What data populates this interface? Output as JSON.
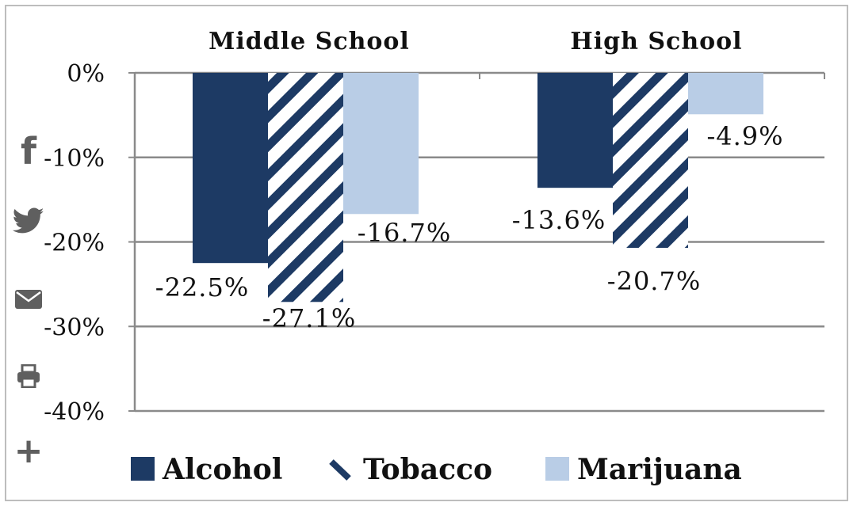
{
  "colors": {
    "alcohol": "#1d3a64",
    "tobacco_stripe": "#1d3a64",
    "marijuana": "#b9cde6",
    "grid": "#8a8a8a",
    "axis": "#8a8a8a",
    "text": "#111111",
    "share_icons": "#5f5f5f"
  },
  "chart_data": {
    "type": "bar",
    "categories": [
      "Middle School",
      "High School"
    ],
    "series": [
      {
        "name": "Alcohol",
        "values": [
          -22.5,
          -13.6
        ],
        "pattern": "solid",
        "color": "#1d3a64"
      },
      {
        "name": "Tobacco",
        "values": [
          -27.1,
          -20.7
        ],
        "pattern": "diagonal-stripes",
        "color": "#1d3a64"
      },
      {
        "name": "Marijuana",
        "values": [
          -16.7,
          -4.9
        ],
        "pattern": "solid",
        "color": "#b9cde6"
      }
    ],
    "data_labels": [
      [
        "-22.5%",
        "-13.6%"
      ],
      [
        "-27.1%",
        "-20.7%"
      ],
      [
        "-16.7%",
        "-4.9%"
      ]
    ],
    "y_ticks": [
      0,
      -10,
      -20,
      -30,
      -40
    ],
    "y_tick_labels": [
      "0%",
      "-10%",
      "-20%",
      "-30%",
      "-40%"
    ],
    "ylim": [
      -40,
      0
    ],
    "category_labels_position": "top",
    "grid": true,
    "legend": {
      "position": "bottom",
      "entries": [
        "Alcohol",
        "Tobacco",
        "Marijuana"
      ]
    },
    "title": "",
    "xlabel": "",
    "ylabel": ""
  },
  "share_bar": {
    "icons": [
      "facebook-icon",
      "twitter-icon",
      "email-icon",
      "print-icon",
      "plus-icon"
    ],
    "facebook_glyph": "f",
    "plus_glyph": "+"
  }
}
